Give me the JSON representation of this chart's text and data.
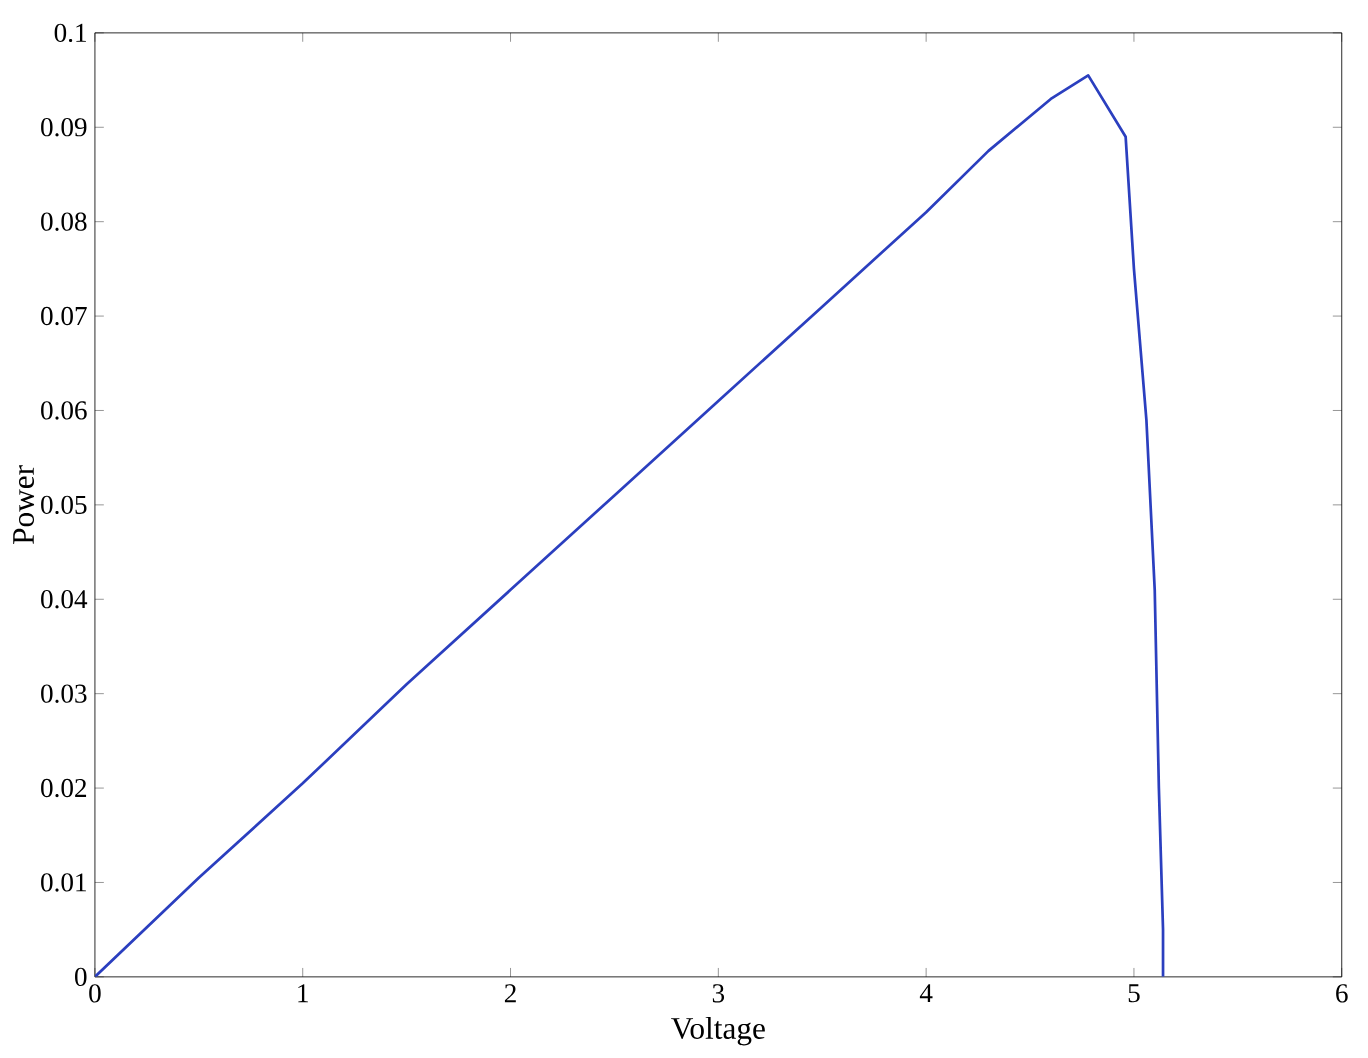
{
  "chart_data": {
    "type": "line",
    "xlabel": "Voltage",
    "ylabel": "Power",
    "series": [
      {
        "color": "#2b3fbf",
        "x": [
          0,
          0.5,
          1,
          1.5,
          2,
          2.5,
          3,
          3.5,
          4,
          4.3,
          4.6,
          4.78,
          4.96,
          5.0,
          5.06,
          5.1,
          5.12,
          5.14,
          5.14
        ],
        "values": [
          0,
          0.0105,
          0.0205,
          0.031,
          0.041,
          0.051,
          0.061,
          0.071,
          0.081,
          0.0875,
          0.093,
          0.0955,
          0.089,
          0.075,
          0.059,
          0.041,
          0.02,
          0.005,
          0
        ]
      }
    ],
    "xlim": [
      0,
      6
    ],
    "ylim": [
      0,
      0.1
    ],
    "xticks": [
      0,
      1,
      2,
      3,
      4,
      5,
      6
    ],
    "yticks": [
      0,
      0.01,
      0.02,
      0.03,
      0.04,
      0.05,
      0.06,
      0.07,
      0.08,
      0.09,
      0.1
    ],
    "grid": false
  }
}
